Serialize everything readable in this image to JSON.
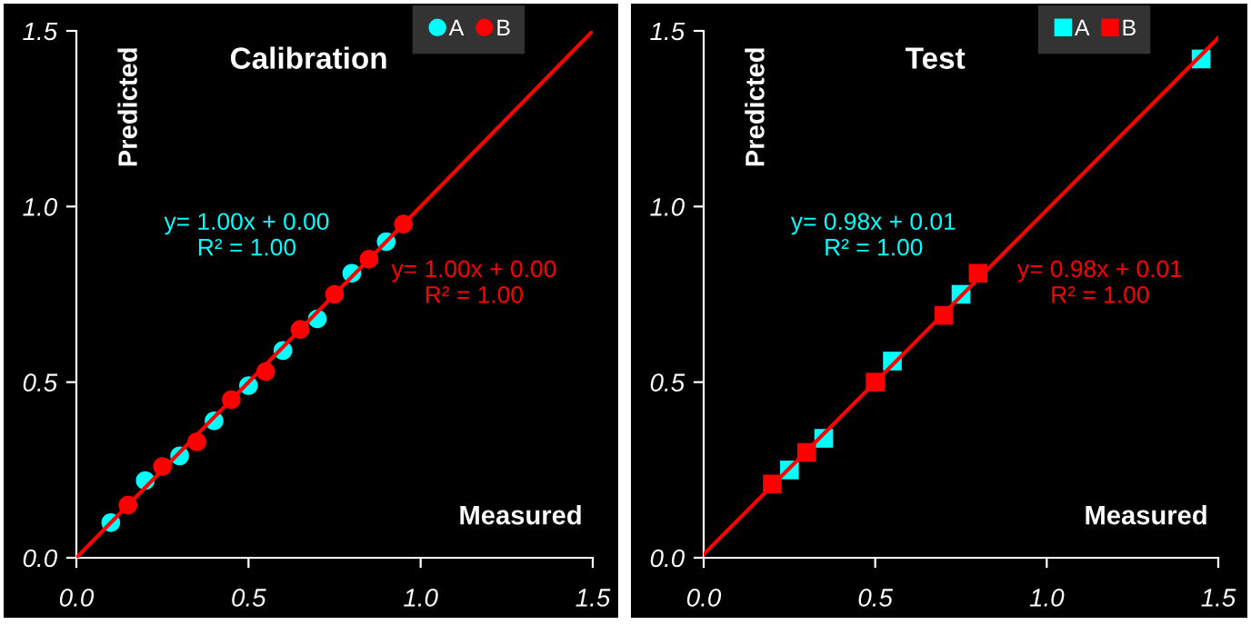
{
  "chart_data": [
    {
      "type": "scatter",
      "title": "Calibration",
      "xlabel": "Measured",
      "ylabel": "Predicted",
      "xlim": [
        0,
        1.5
      ],
      "ylim": [
        0,
        1.5
      ],
      "xticks": [
        {
          "value": 0,
          "label": "0.0"
        },
        {
          "value": 0.5,
          "label": "0.5"
        },
        {
          "value": 1,
          "label": "1.0"
        },
        {
          "value": 1.5,
          "label": "1.5"
        }
      ],
      "yticks": [
        {
          "value": 0,
          "label": "0.0"
        },
        {
          "value": 0.5,
          "label": "0.5"
        },
        {
          "value": 1,
          "label": "1.0"
        },
        {
          "value": 1.5,
          "label": "1.5"
        }
      ],
      "grid": false,
      "legend": "top right",
      "series": [
        {
          "name": "A",
          "color": "#00ffff",
          "marker": "circle",
          "x": [
            0.1,
            0.2,
            0.3,
            0.4,
            0.5,
            0.6,
            0.7,
            0.8,
            0.9
          ],
          "values": [
            0.1,
            0.22,
            0.29,
            0.39,
            0.49,
            0.59,
            0.68,
            0.81,
            0.9
          ]
        },
        {
          "name": "B",
          "color": "#ff0000",
          "marker": "circle",
          "x": [
            0.15,
            0.25,
            0.35,
            0.45,
            0.55,
            0.65,
            0.75,
            0.85,
            0.95
          ],
          "values": [
            0.15,
            0.26,
            0.33,
            0.45,
            0.53,
            0.65,
            0.75,
            0.85,
            0.95
          ]
        },
        {
          "type": "line",
          "color": "#ff0000",
          "x": [
            0,
            1.5
          ],
          "values": [
            0,
            1.5
          ]
        }
      ],
      "annotations": [
        "y= 1.00x + 0.00\nR² = 1.00",
        "y= 1.00x + 0.00\nR² = 1.00"
      ]
    },
    {
      "type": "scatter",
      "title": "Test",
      "xlabel": "Measured",
      "ylabel": "Predicted",
      "xlim": [
        0,
        1.5
      ],
      "ylim": [
        0,
        1.5
      ],
      "xticks": [
        {
          "value": 0,
          "label": "0.0"
        },
        {
          "value": 0.5,
          "label": "0.5"
        },
        {
          "value": 1,
          "label": "1.0"
        },
        {
          "value": 1.5,
          "label": "1.5"
        }
      ],
      "yticks": [
        {
          "value": 0,
          "label": "0.0"
        },
        {
          "value": 0.5,
          "label": "0.5"
        },
        {
          "value": 1,
          "label": "1.0"
        },
        {
          "value": 1.5,
          "label": "1.5"
        }
      ],
      "grid": false,
      "legend": "top right",
      "series": [
        {
          "name": "A",
          "color": "#00ffff",
          "marker": "square",
          "x": [
            0.25,
            0.35,
            0.55,
            0.75,
            1.45
          ],
          "values": [
            0.25,
            0.34,
            0.56,
            0.75,
            1.42
          ]
        },
        {
          "name": "B",
          "color": "#ff0000",
          "marker": "square",
          "x": [
            0.2,
            0.3,
            0.5,
            0.7,
            0.8
          ],
          "values": [
            0.21,
            0.3,
            0.5,
            0.69,
            0.81
          ]
        },
        {
          "type": "line",
          "color": "#ff0000",
          "x": [
            0,
            1.5
          ],
          "values": [
            0.01,
            1.48
          ]
        }
      ],
      "annotations": [
        "y= 0.98x + 0.01\nR² = 1.00",
        "y= 0.98x + 0.01\nR² = 1.00"
      ]
    }
  ]
}
